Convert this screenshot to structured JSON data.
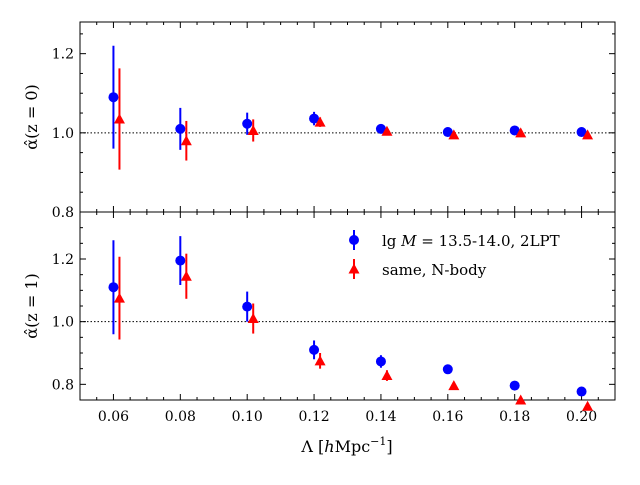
{
  "chart_data": [
    {
      "type": "scatter",
      "panel": "top",
      "title": "",
      "xlabel": "",
      "ylabel": "α̂(z = 0)",
      "xlim": [
        0.05,
        0.21
      ],
      "ylim": [
        0.8,
        1.28
      ],
      "yticks": [
        0.8,
        1.0,
        1.2
      ],
      "ytick_labels": [
        "0.8",
        "1.0",
        "1.2"
      ],
      "reference_line": 1.0,
      "x": [
        0.06,
        0.08,
        0.1,
        0.12,
        0.14,
        0.16,
        0.18,
        0.2
      ],
      "series": [
        {
          "name": "lg M = 13.5-14.0, 2LPT",
          "color": "#0000ff",
          "marker": "circle",
          "values": [
            1.09,
            1.01,
            1.023,
            1.036,
            1.01,
            1.002,
            1.006,
            1.002
          ],
          "errors": [
            0.13,
            0.053,
            0.028,
            0.017,
            0.006,
            0.006,
            0.006,
            0.006
          ]
        },
        {
          "name": "same, N-body",
          "color": "#ff0000",
          "marker": "triangle",
          "values": [
            1.035,
            0.98,
            1.006,
            1.027,
            1.004,
            0.995,
            1.0,
            0.995
          ],
          "errors": [
            0.128,
            0.05,
            0.028,
            0.012,
            0.005,
            0.005,
            0.005,
            0.005
          ]
        }
      ]
    },
    {
      "type": "scatter",
      "panel": "bottom",
      "title": "",
      "xlabel": "Λ [hMpc⁻¹]",
      "ylabel": "α̂(z = 1)",
      "xlim": [
        0.05,
        0.21
      ],
      "ylim": [
        0.75,
        1.35
      ],
      "xticks": [
        0.06,
        0.08,
        0.1,
        0.12,
        0.14,
        0.16,
        0.18,
        0.2
      ],
      "xtick_labels": [
        "0.06",
        "0.08",
        "0.10",
        "0.12",
        "0.14",
        "0.16",
        "0.18",
        "0.20"
      ],
      "yticks": [
        0.8,
        1.0,
        1.2
      ],
      "ytick_labels": [
        "0.8",
        "1.0",
        "1.2"
      ],
      "reference_line": 1.0,
      "legend": "top-right",
      "x": [
        0.06,
        0.08,
        0.1,
        0.12,
        0.14,
        0.16,
        0.18,
        0.2
      ],
      "series": [
        {
          "name": "lg M = 13.5-14.0, 2LPT",
          "color": "#0000ff",
          "marker": "circle",
          "values": [
            1.11,
            1.195,
            1.048,
            0.91,
            0.873,
            0.848,
            0.796,
            0.777
          ],
          "errors": [
            0.15,
            0.078,
            0.048,
            0.03,
            0.02,
            0.008,
            0.006,
            0.006
          ]
        },
        {
          "name": "same, N-body",
          "color": "#ff0000",
          "marker": "triangle",
          "values": [
            1.075,
            1.145,
            1.01,
            0.875,
            0.828,
            0.796,
            0.75,
            0.73
          ],
          "errors": [
            0.132,
            0.072,
            0.048,
            0.025,
            0.017,
            0.006,
            0.006,
            0.006
          ]
        }
      ]
    }
  ],
  "legend": {
    "entries": [
      {
        "label_prefix": "lg ",
        "label_math": "M",
        "label_suffix": " = 13.5-14.0, 2LPT",
        "color": "#0000ff",
        "marker": "circle"
      },
      {
        "label": "same, N-body",
        "color": "#ff0000",
        "marker": "triangle"
      }
    ]
  },
  "axis_titles": {
    "x": {
      "prefix": "Λ [",
      "math": "h",
      "unit": "Mpc",
      "sup": "−1",
      "suffix": "]"
    },
    "y_top": {
      "text": "α̂(z = 0)"
    },
    "y_bottom": {
      "text": "α̂(z = 1)"
    }
  }
}
